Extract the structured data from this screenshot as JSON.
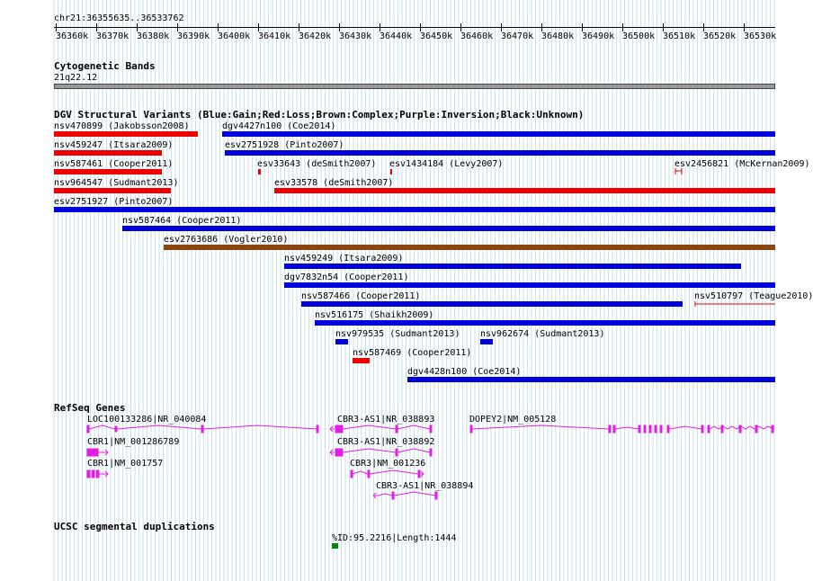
{
  "location": "chr21:36355635..36533762",
  "ruler": {
    "ticks": [
      "36360k",
      "36370k",
      "36380k",
      "36390k",
      "36400k",
      "36410k",
      "36420k",
      "36430k",
      "36440k",
      "36450k",
      "36460k",
      "36470k",
      "36480k",
      "36490k",
      "36500k",
      "36510k",
      "36520k",
      "36530k"
    ]
  },
  "tracks": {
    "cytoband": {
      "title": "Cytogenetic Bands",
      "band_label": "21q22.12"
    },
    "dgv": {
      "title": "DGV Structural Variants (Blue:Gain;Red:Loss;Brown:Complex;Purple:Inversion;Black:Unknown)",
      "colors": {
        "gain": "#0000dd",
        "loss": "#ee0000",
        "complex": "#8b4513"
      },
      "variants": [
        "nsv470899 (Jakobsson2008)",
        "dgv4427n100 (Coe2014)",
        "nsv459247 (Itsara2009)",
        "esv2751928 (Pinto2007)",
        "nsv587461 (Cooper2011)",
        "esv33643 (deSmith2007)",
        "esv1434184 (Levy2007)",
        "esv2456821 (McKernan2009)",
        "nsv964547 (Sudmant2013)",
        "esv33578 (deSmith2007)",
        "esv2751927 (Pinto2007)",
        "nsv587464 (Cooper2011)",
        "esv2763686 (Vogler2010)",
        "nsv459249 (Itsara2009)",
        "dgv7832n54 (Cooper2011)",
        "nsv587466 (Cooper2011)",
        "nsv510797 (Teague2010)",
        "nsv516175 (Shaikh2009)",
        "nsv979535 (Sudmant2013)",
        "nsv962674 (Sudmant2013)",
        "nsv587469 (Cooper2011)",
        "dgv4428n100 (Coe2014)"
      ]
    },
    "refseq": {
      "title": "RefSeq Genes",
      "color": "#e020e0",
      "genes": [
        "LOC100133286|NR_040084",
        "CBR3-AS1|NR_038893",
        "DOPEY2|NM_005128",
        "CBR1|NM_001286789",
        "CBR3-AS1|NR_038892",
        "CBR1|NM_001757",
        "CBR3|NM_001236",
        "CBR3-AS1|NR_038894"
      ]
    },
    "segdup": {
      "title": "UCSC segmental duplications",
      "feature_label": "%ID:95.2216|Length:1444",
      "color": "#008800"
    }
  }
}
